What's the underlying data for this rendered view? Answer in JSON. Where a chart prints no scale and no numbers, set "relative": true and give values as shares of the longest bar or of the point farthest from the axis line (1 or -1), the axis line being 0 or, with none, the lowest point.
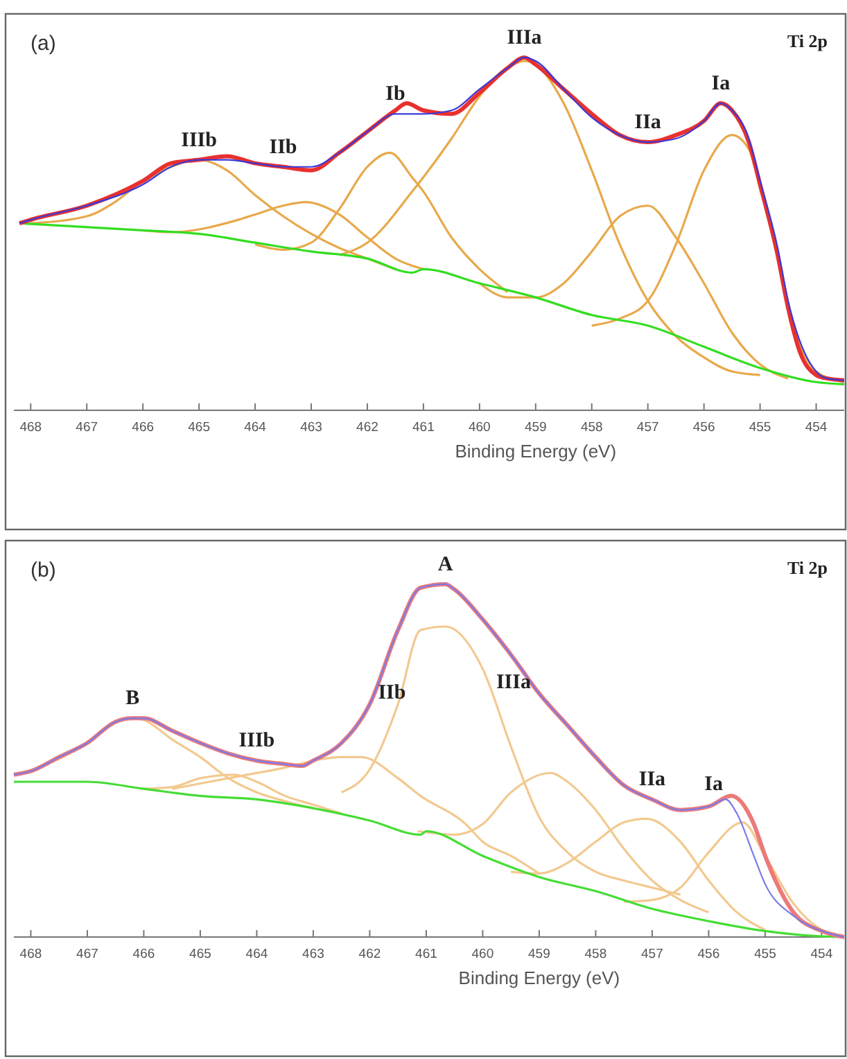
{
  "chart_data": [
    {
      "type": "line",
      "title": "(a)",
      "xlabel": "Binding Energy (eV)",
      "relative": true,
      "tick_labels": "x",
      "xlim": [
        468.3,
        453.5
      ],
      "xticks": [
        468,
        467,
        466,
        465,
        464,
        463,
        462,
        461,
        460,
        459,
        458,
        457,
        456,
        455,
        454
      ],
      "annotations": [
        "Ti 2p",
        {
          "text": "IIIb",
          "x": 465,
          "y": 0.71
        },
        {
          "text": "IIb",
          "x": 463.5,
          "y": 0.69
        },
        {
          "text": "Ib",
          "x": 461.5,
          "y": 0.84
        },
        {
          "text": "IIIa",
          "x": 459.2,
          "y": 1.0
        },
        {
          "text": "IIa",
          "x": 457,
          "y": 0.76
        },
        {
          "text": "Ia",
          "x": 455.7,
          "y": 0.87
        }
      ],
      "series": [
        {
          "color": "#e8a94a",
          "x": [
            468,
            467,
            466.5,
            466,
            465.5,
            465,
            464.5,
            464,
            463.5,
            463,
            462.5,
            462,
            461.5
          ],
          "values": [
            0.53,
            0.55,
            0.59,
            0.65,
            0.69,
            0.71,
            0.68,
            0.61,
            0.55,
            0.5,
            0.46,
            0.43,
            0.4
          ]
        },
        {
          "color": "#e8a94a",
          "x": [
            466,
            465.5,
            464.3,
            464,
            463.5,
            463.1,
            462.5,
            462,
            461.5,
            461
          ],
          "values": [
            0.51,
            0.505,
            0.54,
            0.555,
            0.58,
            0.59,
            0.555,
            0.49,
            0.43,
            0.4
          ]
        },
        {
          "color": "#e8a94a",
          "x": [
            464,
            463.5,
            463,
            462.5,
            462,
            461.6,
            461.2,
            461,
            460.5,
            460,
            459.5
          ],
          "values": [
            0.47,
            0.455,
            0.475,
            0.57,
            0.69,
            0.73,
            0.66,
            0.62,
            0.49,
            0.4,
            0.335
          ]
        },
        {
          "color": "#e8a94a",
          "x": [
            462.5,
            462,
            461.2,
            460.5,
            460,
            459.5,
            459.2,
            459,
            458.5,
            458,
            457.5,
            457,
            456.5,
            456,
            455.5,
            455
          ],
          "values": [
            0.44,
            0.475,
            0.62,
            0.77,
            0.89,
            0.97,
            0.99,
            0.98,
            0.87,
            0.68,
            0.47,
            0.31,
            0.21,
            0.15,
            0.11,
            0.1
          ]
        },
        {
          "color": "#e8a94a",
          "x": [
            460,
            459.5,
            459,
            458.5,
            458,
            457.5,
            457,
            456.5,
            456,
            455.5,
            455,
            454.5
          ],
          "values": [
            0.36,
            0.32,
            0.32,
            0.36,
            0.45,
            0.55,
            0.58,
            0.49,
            0.36,
            0.22,
            0.13,
            0.09
          ]
        },
        {
          "color": "#e8a94a",
          "x": [
            458,
            457.5,
            457,
            456.5,
            456,
            455.5,
            455.2,
            455,
            454.7,
            454.5,
            454.3,
            454,
            453.5
          ],
          "values": [
            0.24,
            0.26,
            0.31,
            0.47,
            0.68,
            0.78,
            0.74,
            0.63,
            0.44,
            0.29,
            0.19,
            0.11,
            0.08
          ]
        },
        {
          "color": "#33dd22",
          "x": [
            468.2,
            466,
            465,
            464,
            463,
            462,
            461.2,
            461,
            460,
            459,
            458,
            457,
            456,
            455,
            454,
            453.5
          ],
          "values": [
            0.53,
            0.51,
            0.5,
            0.475,
            0.45,
            0.43,
            0.39,
            0.4,
            0.36,
            0.32,
            0.27,
            0.24,
            0.18,
            0.12,
            0.08,
            0.074
          ]
        },
        {
          "color": "#e8312f",
          "x": [
            468.2,
            468,
            467,
            466,
            465.5,
            465,
            464.5,
            464,
            463.5,
            463,
            462.5,
            462,
            461.5,
            461.3,
            461,
            460.5,
            460,
            459.5,
            459.2,
            459,
            458.5,
            458,
            457.5,
            457,
            456.5,
            456,
            455.7,
            455.5,
            455.2,
            455,
            454.7,
            454.5,
            454.3,
            454,
            453.8,
            453.5
          ],
          "values": [
            0.53,
            0.54,
            0.58,
            0.65,
            0.7,
            0.71,
            0.72,
            0.7,
            0.69,
            0.68,
            0.73,
            0.79,
            0.85,
            0.87,
            0.85,
            0.84,
            0.9,
            0.97,
            1.0,
            0.98,
            0.91,
            0.84,
            0.78,
            0.76,
            0.78,
            0.82,
            0.87,
            0.85,
            0.76,
            0.64,
            0.45,
            0.29,
            0.17,
            0.1,
            0.09,
            0.085
          ]
        },
        {
          "color": "#3a3ad8",
          "x": [
            468.2,
            468,
            467,
            466,
            465.5,
            465,
            464.5,
            464,
            463.5,
            463,
            462.5,
            462,
            461.5,
            461.2,
            461,
            460.5,
            460,
            459.5,
            459.2,
            459,
            458.5,
            458,
            457.5,
            457,
            456.5,
            456,
            455.7,
            455.5,
            455.2,
            455,
            454.7,
            454.5,
            454.3,
            454,
            453.8,
            453.5
          ],
          "values": [
            0.53,
            0.54,
            0.58,
            0.64,
            0.69,
            0.71,
            0.71,
            0.7,
            0.69,
            0.69,
            0.73,
            0.79,
            0.84,
            0.84,
            0.84,
            0.85,
            0.91,
            0.97,
            1.0,
            0.99,
            0.91,
            0.83,
            0.78,
            0.76,
            0.77,
            0.82,
            0.87,
            0.85,
            0.77,
            0.65,
            0.47,
            0.31,
            0.2,
            0.11,
            0.09,
            0.085
          ]
        }
      ]
    },
    {
      "type": "line",
      "title": "(b)",
      "xlabel": "Binding Energy (eV)",
      "relative": true,
      "tick_labels": "x",
      "xlim": [
        468.3,
        453.6
      ],
      "xticks": [
        468,
        467,
        466,
        465,
        464,
        463,
        462,
        461,
        460,
        459,
        458,
        457,
        456,
        455,
        454
      ],
      "annotations": [
        "Ti 2p",
        {
          "text": "B",
          "x": 466.2,
          "y": 0.62
        },
        {
          "text": "IIIb",
          "x": 464,
          "y": 0.5
        },
        {
          "text": "IIb",
          "x": 462,
          "y": 0.66
        },
        {
          "text": "A",
          "x": 460.66,
          "y": 1.0
        },
        {
          "text": "IIIa",
          "x": 459,
          "y": 0.69
        },
        {
          "text": "IIa",
          "x": 457,
          "y": 0.39
        },
        {
          "text": "Ia",
          "x": 455.6,
          "y": 0.4
        }
      ],
      "series": [
        {
          "color": "#f2c98f",
          "x": [
            468,
            467,
            466.5,
            466.2,
            466,
            465.5,
            465,
            464.5,
            464,
            463.5,
            463
          ],
          "values": [
            0.47,
            0.55,
            0.61,
            0.62,
            0.615,
            0.56,
            0.51,
            0.45,
            0.41,
            0.385,
            0.365
          ]
        },
        {
          "color": "#f2c98f",
          "x": [
            466,
            465.5,
            465,
            464.4,
            464,
            463.5,
            463,
            462.5
          ],
          "values": [
            0.42,
            0.425,
            0.45,
            0.46,
            0.44,
            0.4,
            0.375,
            0.35
          ]
        },
        {
          "color": "#f2c98f",
          "x": [
            465.5,
            465,
            464.5,
            464,
            463.5,
            463,
            462.5,
            462.15,
            461.5,
            461.1,
            460.3,
            460,
            459.5,
            459
          ],
          "values": [
            0.42,
            0.435,
            0.45,
            0.465,
            0.48,
            0.5,
            0.51,
            0.51,
            0.45,
            0.4,
            0.32,
            0.27,
            0.23,
            0.18
          ]
        },
        {
          "color": "#f2c98f",
          "x": [
            462.5,
            462,
            461.5,
            461.1,
            460.66,
            460,
            459.5,
            459,
            458.5,
            458,
            457.5,
            457,
            456.5
          ],
          "values": [
            0.41,
            0.475,
            0.66,
            0.87,
            0.88,
            0.76,
            0.54,
            0.34,
            0.24,
            0.185,
            0.16,
            0.14,
            0.12
          ]
        },
        {
          "color": "#f2c98f",
          "x": [
            461.15,
            460.5,
            460,
            459.5,
            458.8,
            458.5,
            458,
            457.5,
            457,
            456.5,
            456
          ],
          "values": [
            0.3,
            0.29,
            0.32,
            0.41,
            0.465,
            0.44,
            0.36,
            0.25,
            0.16,
            0.105,
            0.07
          ]
        },
        {
          "color": "#f2c98f",
          "x": [
            459.5,
            459,
            458.5,
            458,
            457.5,
            457.1,
            456.5,
            456,
            455.5,
            455
          ],
          "values": [
            0.185,
            0.18,
            0.21,
            0.27,
            0.325,
            0.335,
            0.27,
            0.16,
            0.07,
            0.02
          ]
        },
        {
          "color": "#f2c98f",
          "x": [
            457.5,
            457,
            456.5,
            456,
            455.4,
            455,
            454.5,
            454,
            453.6
          ],
          "values": [
            0.1,
            0.105,
            0.14,
            0.24,
            0.325,
            0.23,
            0.095,
            0.02,
            0
          ]
        },
        {
          "color": "#44dd33",
          "x": [
            468.3,
            467,
            466,
            465,
            464,
            463,
            462,
            461.1,
            461,
            460,
            459,
            458,
            457,
            456,
            455,
            454,
            453.6
          ],
          "values": [
            0.44,
            0.44,
            0.42,
            0.4,
            0.39,
            0.365,
            0.33,
            0.29,
            0.3,
            0.23,
            0.17,
            0.13,
            0.08,
            0.045,
            0.017,
            0.002,
            0
          ]
        },
        {
          "color": "#ec7a7a",
          "x": [
            468.3,
            468,
            467.5,
            467,
            466.5,
            466.2,
            466,
            465.5,
            465,
            464.5,
            464,
            463.5,
            463.2,
            463,
            462.5,
            462,
            461.5,
            461.1,
            460.66,
            460.5,
            460,
            459.5,
            459,
            458.5,
            458,
            457.5,
            457,
            456.5,
            456,
            455.6,
            455.2,
            455,
            454.5,
            454,
            453.6
          ],
          "values": [
            0.46,
            0.47,
            0.51,
            0.55,
            0.61,
            0.62,
            0.62,
            0.585,
            0.55,
            0.52,
            0.5,
            0.49,
            0.485,
            0.5,
            0.55,
            0.66,
            0.87,
            0.99,
            1.0,
            0.985,
            0.9,
            0.8,
            0.69,
            0.6,
            0.51,
            0.43,
            0.39,
            0.36,
            0.37,
            0.4,
            0.32,
            0.23,
            0.07,
            0.017,
            0
          ]
        },
        {
          "color": "#7a7ae8",
          "x": [
            468.3,
            468,
            467.5,
            467,
            466.5,
            466.2,
            466,
            465.5,
            465,
            464.5,
            464,
            463.5,
            463.2,
            463,
            462.5,
            462,
            461.5,
            461.1,
            460.66,
            460.5,
            460,
            459.5,
            459,
            458.5,
            458,
            457.5,
            457,
            456.5,
            456,
            455.7,
            455.5,
            455.2,
            455,
            454.5,
            454,
            453.6
          ],
          "values": [
            0.46,
            0.47,
            0.51,
            0.55,
            0.61,
            0.62,
            0.62,
            0.585,
            0.55,
            0.52,
            0.5,
            0.49,
            0.485,
            0.5,
            0.55,
            0.66,
            0.87,
            0.99,
            1.0,
            0.985,
            0.9,
            0.8,
            0.69,
            0.6,
            0.51,
            0.43,
            0.39,
            0.36,
            0.37,
            0.39,
            0.35,
            0.23,
            0.15,
            0.06,
            0.017,
            0
          ]
        }
      ]
    }
  ]
}
